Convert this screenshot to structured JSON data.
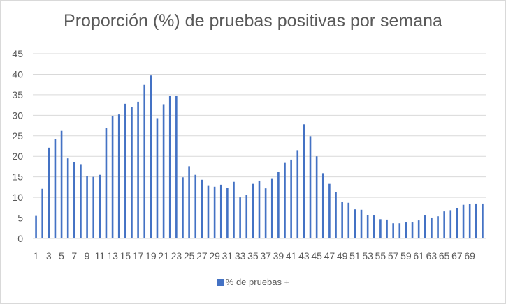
{
  "chart_data": {
    "type": "bar",
    "title": "Proporción (%) de pruebas positivas por semana",
    "xlabel": "",
    "ylabel": "",
    "ylim": [
      0,
      45
    ],
    "yticks": [
      "0",
      "5",
      "10",
      "15",
      "20",
      "25",
      "30",
      "35",
      "40",
      "45"
    ],
    "grid": true,
    "legend_position": "bottom",
    "color": "#4472c4",
    "categories": [
      "1",
      "2",
      "3",
      "4",
      "5",
      "6",
      "7",
      "8",
      "9",
      "10",
      "11",
      "12",
      "13",
      "14",
      "15",
      "16",
      "17",
      "18",
      "19",
      "20",
      "21",
      "22",
      "23",
      "24",
      "25",
      "26",
      "27",
      "28",
      "29",
      "30",
      "31",
      "32",
      "33",
      "34",
      "35",
      "36",
      "37",
      "38",
      "39",
      "40",
      "41",
      "42",
      "43",
      "44",
      "45",
      "46",
      "47",
      "48",
      "49",
      "50",
      "51",
      "52",
      "53",
      "54",
      "55",
      "56",
      "57",
      "58",
      "59",
      "60",
      "61",
      "62",
      "63",
      "64",
      "65",
      "66",
      "67",
      "68",
      "69",
      "70",
      "71"
    ],
    "x_tick_labels": [
      "1",
      "3",
      "5",
      "7",
      "9",
      "11",
      "13",
      "15",
      "17",
      "19",
      "21",
      "23",
      "25",
      "27",
      "29",
      "31",
      "33",
      "35",
      "37",
      "39",
      "41",
      "43",
      "45",
      "47",
      "49",
      "51",
      "53",
      "55",
      "57",
      "59",
      "61",
      "63",
      "65",
      "67",
      "69"
    ],
    "series": [
      {
        "name": "% de pruebas +",
        "values": [
          5.5,
          12.1,
          22.1,
          24.2,
          26.2,
          19.5,
          18.6,
          18.1,
          15.2,
          15.0,
          15.5,
          26.9,
          29.8,
          30.2,
          32.8,
          32.0,
          33.3,
          37.4,
          39.7,
          29.3,
          32.7,
          34.8,
          34.7,
          14.9,
          17.6,
          15.5,
          14.3,
          12.8,
          12.6,
          13.1,
          12.3,
          13.8,
          10.0,
          10.6,
          13.3,
          14.1,
          12.2,
          14.5,
          16.2,
          18.4,
          19.2,
          21.5,
          27.8,
          24.9,
          20.0,
          15.9,
          13.3,
          11.3,
          9.0,
          8.7,
          7.1,
          7.0,
          5.7,
          5.6,
          4.7,
          4.6,
          3.7,
          3.7,
          3.9,
          3.9,
          4.4,
          5.6,
          5.1,
          5.4,
          6.6,
          6.9,
          7.4,
          8.2,
          8.4,
          8.5,
          8.5
        ]
      }
    ]
  }
}
